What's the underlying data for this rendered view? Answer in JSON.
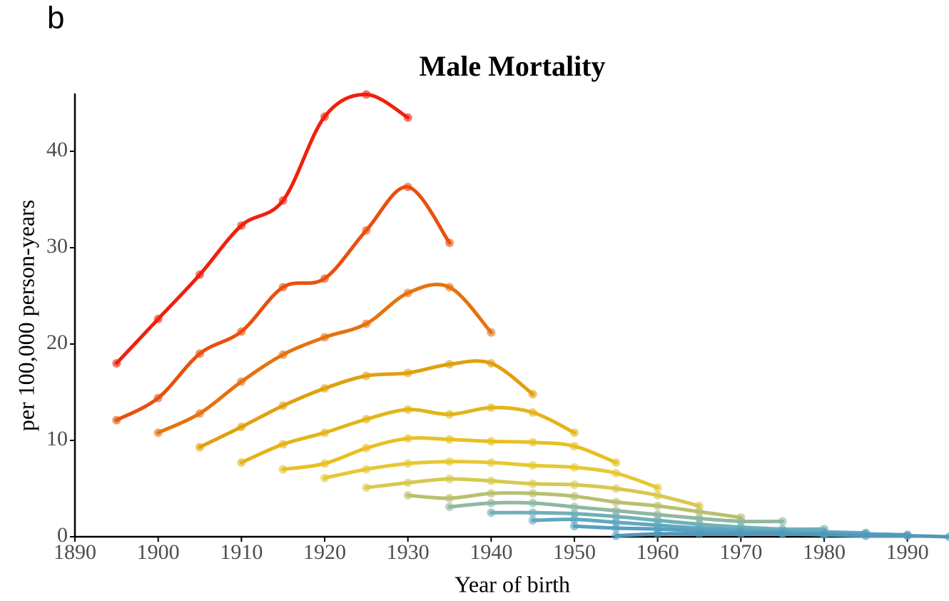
{
  "chart_data": {
    "type": "line",
    "panel_label": "b",
    "title": "Male Mortality",
    "xlabel": "Year of birth",
    "ylabel": "per 100,000 person-years",
    "xlim": [
      1890,
      1995
    ],
    "ylim": [
      0,
      46
    ],
    "xticks": [
      1890,
      1900,
      1910,
      1920,
      1930,
      1940,
      1950,
      1960,
      1970,
      1980,
      1990
    ],
    "yticks": [
      0,
      10,
      20,
      30,
      40
    ],
    "series": [
      {
        "color": "#f0200e",
        "x": [
          1895,
          1900,
          1905,
          1910,
          1915,
          1920,
          1925,
          1930
        ],
        "values": [
          18,
          22.6,
          27.2,
          32.3,
          34.9,
          43.6,
          45.9,
          43.5
        ]
      },
      {
        "color": "#e8500e",
        "x": [
          1895,
          1900,
          1905,
          1910,
          1915,
          1920,
          1925,
          1930,
          1935
        ],
        "values": [
          12.1,
          14.4,
          19,
          21.3,
          25.9,
          26.8,
          31.8,
          36.3,
          30.5
        ]
      },
      {
        "color": "#e6720e",
        "x": [
          1900,
          1905,
          1910,
          1915,
          1920,
          1925,
          1930,
          1935,
          1940
        ],
        "values": [
          10.8,
          12.8,
          16.1,
          18.9,
          20.7,
          22.1,
          25.3,
          25.9,
          21.2
        ]
      },
      {
        "color": "#e0a00e",
        "x": [
          1905,
          1910,
          1915,
          1920,
          1925,
          1930,
          1935,
          1940,
          1945
        ],
        "values": [
          9.3,
          11.4,
          13.6,
          15.4,
          16.7,
          17,
          17.9,
          18,
          14.8
        ]
      },
      {
        "color": "#e4b418",
        "x": [
          1910,
          1915,
          1920,
          1925,
          1930,
          1935,
          1940,
          1945,
          1950
        ],
        "values": [
          7.7,
          9.6,
          10.8,
          12.2,
          13.2,
          12.7,
          13.4,
          12.9,
          10.8
        ]
      },
      {
        "color": "#e8c020",
        "x": [
          1915,
          1920,
          1925,
          1930,
          1935,
          1940,
          1945,
          1950,
          1955
        ],
        "values": [
          7,
          7.6,
          9.2,
          10.2,
          10.1,
          9.9,
          9.8,
          9.4,
          7.7
        ]
      },
      {
        "color": "#e6c832",
        "x": [
          1920,
          1925,
          1930,
          1935,
          1940,
          1945,
          1950,
          1955,
          1960
        ],
        "values": [
          6.1,
          7,
          7.6,
          7.8,
          7.7,
          7.4,
          7.2,
          6.6,
          5.1
        ]
      },
      {
        "color": "#d8c850",
        "x": [
          1925,
          1930,
          1935,
          1940,
          1945,
          1950,
          1955,
          1960,
          1965
        ],
        "values": [
          5.1,
          5.6,
          6,
          5.8,
          5.5,
          5.4,
          5,
          4.3,
          3.2
        ]
      },
      {
        "color": "#b8c070",
        "x": [
          1930,
          1935,
          1940,
          1945,
          1950,
          1955,
          1960,
          1965,
          1970
        ],
        "values": [
          4.3,
          4,
          4.5,
          4.5,
          4.2,
          3.6,
          3.2,
          2.6,
          2
        ]
      },
      {
        "color": "#90b8a0",
        "x": [
          1935,
          1940,
          1945,
          1950,
          1955,
          1960,
          1965,
          1970,
          1975
        ],
        "values": [
          3.1,
          3.5,
          3.5,
          3.1,
          2.7,
          2.3,
          1.9,
          1.6,
          1.6
        ]
      },
      {
        "color": "#70b0b8",
        "x": [
          1940,
          1945,
          1950,
          1955,
          1960,
          1965,
          1970,
          1975,
          1980
        ],
        "values": [
          2.5,
          2.5,
          2.4,
          2.1,
          1.7,
          1.3,
          1,
          0.8,
          0.8
        ]
      },
      {
        "color": "#60a8c0",
        "x": [
          1945,
          1950,
          1955,
          1960,
          1965,
          1970,
          1975,
          1980,
          1985
        ],
        "values": [
          1.7,
          1.8,
          1.5,
          1.2,
          0.9,
          0.7,
          0.6,
          0.5,
          0.4
        ]
      },
      {
        "color": "#58a0c0",
        "x": [
          1950,
          1955,
          1960,
          1965,
          1970,
          1975,
          1980,
          1985,
          1990
        ],
        "values": [
          1.1,
          0.9,
          0.8,
          0.6,
          0.5,
          0.4,
          0.3,
          0.3,
          0.2
        ]
      },
      {
        "color": "#5098b8",
        "x": [
          1955,
          1960,
          1965,
          1970,
          1975,
          1980,
          1985,
          1990,
          1995
        ],
        "values": [
          0.1,
          0.3,
          0.3,
          0.3,
          0.3,
          0.2,
          0.1,
          0.1,
          0
        ]
      }
    ]
  }
}
